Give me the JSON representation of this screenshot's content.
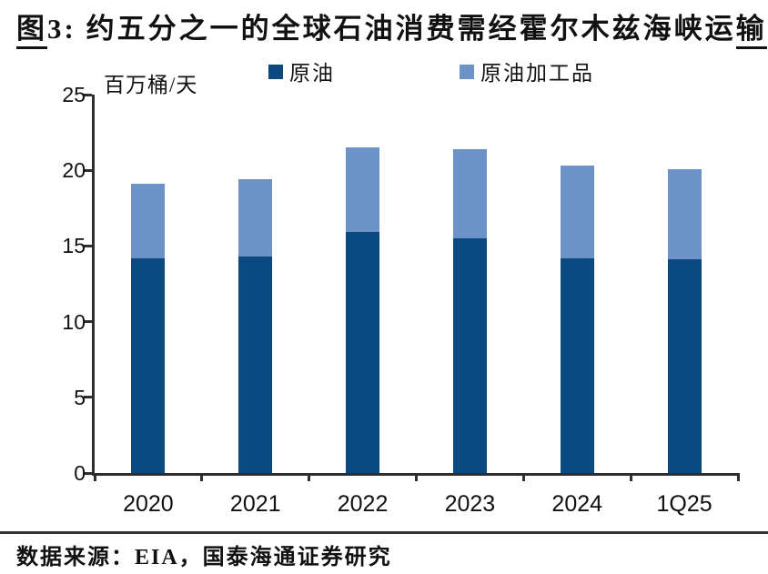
{
  "title": {
    "prefix": "图",
    "middle": "3:  约五分之一的全球石油消费需经霍尔木兹海峡运",
    "suffix": "输"
  },
  "footer": {
    "source_text": "数据来源：EIA，国泰海通证券研究"
  },
  "chart_data": {
    "type": "bar",
    "stacked": true,
    "title": "图3: 约五分之一的全球石油消费需经霍尔木兹海峡运输",
    "unit_label": "百万桶/天",
    "categories": [
      "2020",
      "2021",
      "2022",
      "2023",
      "2024",
      "1Q25"
    ],
    "series": [
      {
        "key": "crude-oil",
        "name": "原油",
        "color": "#0B4A81",
        "values": [
          14.2,
          14.3,
          15.9,
          15.5,
          14.2,
          14.1
        ]
      },
      {
        "key": "refined-products",
        "name": "原油加工品",
        "color": "#6C93C7",
        "values": [
          4.9,
          5.1,
          5.6,
          5.9,
          6.1,
          6.0
        ]
      }
    ],
    "totals": [
      19.1,
      19.4,
      21.5,
      21.4,
      20.3,
      20.1
    ],
    "ylim": [
      0,
      25
    ],
    "yticks": [
      0,
      5,
      10,
      15,
      20,
      25
    ],
    "legend_position": "top",
    "grid": false,
    "axis_color": "#2e2e2e"
  }
}
